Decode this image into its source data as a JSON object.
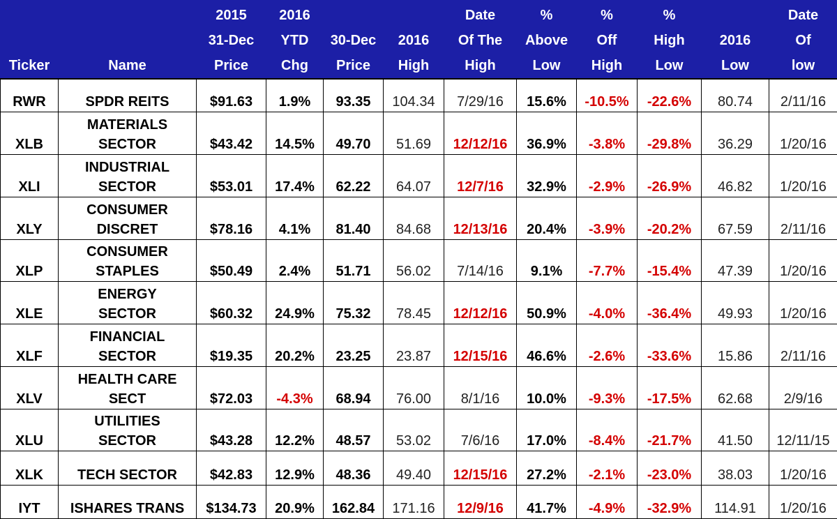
{
  "headers": [
    [
      "Ticker"
    ],
    [
      "Name"
    ],
    [
      "2015",
      "31-Dec",
      "Price"
    ],
    [
      "2016",
      "YTD",
      "Chg"
    ],
    [
      "30-Dec",
      "Price"
    ],
    [
      "2016",
      "High"
    ],
    [
      "Date",
      "Of The",
      "High"
    ],
    [
      "%",
      "Above",
      "Low"
    ],
    [
      "%",
      "Off",
      "High"
    ],
    [
      "%",
      "High",
      "Low"
    ],
    [
      "2016",
      "Low"
    ],
    [
      "Date",
      "Of",
      "low"
    ]
  ],
  "rows": [
    {
      "ticker": "RWR",
      "name": [
        "SPDR REITS"
      ],
      "price2015": "$91.63",
      "ytd": "1.9%",
      "price30": "93.35",
      "high": "104.34",
      "high_date": "7/29/16",
      "above_low": "15.6%",
      "off_high": "-10.5%",
      "high_low": "-22.6%",
      "low": "80.74",
      "low_date": "2/11/16"
    },
    {
      "ticker": "XLB",
      "name": [
        "MATERIALS",
        "SECTOR"
      ],
      "price2015": "$43.42",
      "ytd": "14.5%",
      "price30": "49.70",
      "high": "51.69",
      "high_date": "12/12/16",
      "above_low": "36.9%",
      "off_high": "-3.8%",
      "high_low": "-29.8%",
      "low": "36.29",
      "low_date": "1/20/16"
    },
    {
      "ticker": "XLI",
      "name": [
        "INDUSTRIAL",
        "SECTOR"
      ],
      "price2015": "$53.01",
      "ytd": "17.4%",
      "price30": "62.22",
      "high": "64.07",
      "high_date": "12/7/16",
      "above_low": "32.9%",
      "off_high": "-2.9%",
      "high_low": "-26.9%",
      "low": "46.82",
      "low_date": "1/20/16"
    },
    {
      "ticker": "XLY",
      "name": [
        "CONSUMER",
        "DISCRET"
      ],
      "price2015": "$78.16",
      "ytd": "4.1%",
      "price30": "81.40",
      "high": "84.68",
      "high_date": "12/13/16",
      "above_low": "20.4%",
      "off_high": "-3.9%",
      "high_low": "-20.2%",
      "low": "67.59",
      "low_date": "2/11/16"
    },
    {
      "ticker": "XLP",
      "name": [
        "CONSUMER",
        "STAPLES"
      ],
      "price2015": "$50.49",
      "ytd": "2.4%",
      "price30": "51.71",
      "high": "56.02",
      "high_date": "7/14/16",
      "above_low": "9.1%",
      "off_high": "-7.7%",
      "high_low": "-15.4%",
      "low": "47.39",
      "low_date": "1/20/16"
    },
    {
      "ticker": "XLE",
      "name": [
        "ENERGY",
        "SECTOR"
      ],
      "price2015": "$60.32",
      "ytd": "24.9%",
      "price30": "75.32",
      "high": "78.45",
      "high_date": "12/12/16",
      "above_low": "50.9%",
      "off_high": "-4.0%",
      "high_low": "-36.4%",
      "low": "49.93",
      "low_date": "1/20/16"
    },
    {
      "ticker": "XLF",
      "name": [
        "FINANCIAL",
        "SECTOR"
      ],
      "price2015": "$19.35",
      "ytd": "20.2%",
      "price30": "23.25",
      "high": "23.87",
      "high_date": "12/15/16",
      "above_low": "46.6%",
      "off_high": "-2.6%",
      "high_low": "-33.6%",
      "low": "15.86",
      "low_date": "2/11/16"
    },
    {
      "ticker": "XLV",
      "name": [
        "HEALTH CARE",
        "SECT"
      ],
      "price2015": "$72.03",
      "ytd": "-4.3%",
      "price30": "68.94",
      "high": "76.00",
      "high_date": "8/1/16",
      "above_low": "10.0%",
      "off_high": "-9.3%",
      "high_low": "-17.5%",
      "low": "62.68",
      "low_date": "2/9/16"
    },
    {
      "ticker": "XLU",
      "name": [
        "UTILITIES",
        "SECTOR"
      ],
      "price2015": "$43.28",
      "ytd": "12.2%",
      "price30": "48.57",
      "high": "53.02",
      "high_date": "7/6/16",
      "above_low": "17.0%",
      "off_high": "-8.4%",
      "high_low": "-21.7%",
      "low": "41.50",
      "low_date": "12/11/15"
    },
    {
      "ticker": "XLK",
      "name": [
        "TECH SECTOR"
      ],
      "price2015": "$42.83",
      "ytd": "12.9%",
      "price30": "48.36",
      "high": "49.40",
      "high_date": "12/15/16",
      "above_low": "27.2%",
      "off_high": "-2.1%",
      "high_low": "-23.0%",
      "low": "38.03",
      "low_date": "1/20/16"
    },
    {
      "ticker": "IYT",
      "name": [
        "ISHARES TRANS"
      ],
      "price2015": "$134.73",
      "ytd": "20.9%",
      "price30": "162.84",
      "high": "171.16",
      "high_date": "12/9/16",
      "above_low": "41.7%",
      "off_high": "-4.9%",
      "high_low": "-32.9%",
      "low": "114.91",
      "low_date": "1/20/16"
    }
  ],
  "colors": {
    "header_bg": "#1c1fa6",
    "header_text": "#ffffff",
    "negative": "#d40000",
    "new_high_date": "#d40000"
  }
}
